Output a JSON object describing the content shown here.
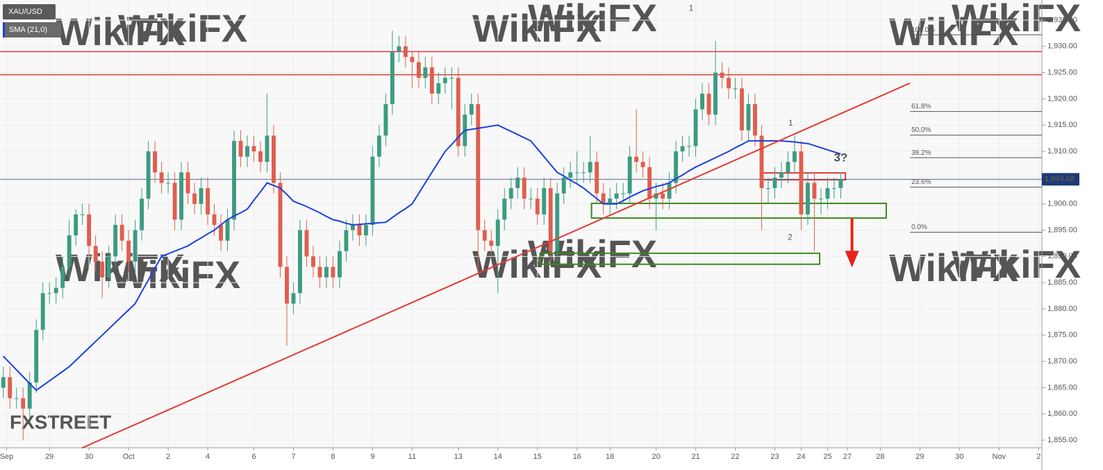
{
  "chart_data": {
    "type": "candlestick",
    "symbol": "XAU/USD",
    "up_color": "#3c9b82",
    "down_color": "#df5f4e",
    "open": [
      1865,
      1867,
      1863,
      1863,
      1861,
      1866,
      1876,
      1883,
      1883,
      1884,
      1888,
      1894,
      1898,
      1898,
      1892,
      1889,
      1886,
      1890,
      1896,
      1893,
      1889,
      1895,
      1901,
      1910,
      1906,
      1904,
      1904,
      1897,
      1906,
      1902,
      1900,
      1903,
      1898,
      1896,
      1893,
      1897,
      1912,
      1909,
      1911,
      1910,
      1908,
      1913,
      1904,
      1888,
      1881,
      1883,
      1895,
      1890,
      1888,
      1886,
      1888,
      1886,
      1891,
      1895,
      1896,
      1894,
      1896,
      1909,
      1913,
      1919,
      1929,
      1930,
      1928,
      1927,
      1924,
      1926,
      1921,
      1923,
      1924,
      1924,
      1911,
      1917,
      1919,
      1895,
      1893,
      1892,
      1897,
      1901,
      1903,
      1905,
      1901,
      1901,
      1898,
      1903,
      1891,
      1902,
      1905,
      1906,
      1906,
      1906,
      1908,
      1902,
      1900,
      1901,
      1902,
      1902,
      1909,
      1908,
      1907,
      1901,
      1902,
      1901,
      1904,
      1910,
      1911,
      1911,
      1918,
      1921,
      1917,
      1925,
      1924,
      1922,
      1922,
      1914,
      1919,
      1913,
      1903,
      1903,
      1905,
      1906,
      1908,
      1910,
      1898,
      1904,
      1901,
      1901,
      1903,
      1903
    ],
    "high": [
      1869,
      1869,
      1865,
      1865,
      1868,
      1878,
      1885,
      1885,
      1886,
      1890,
      1897,
      1899,
      1900,
      1900,
      1894,
      1891,
      1892,
      1898,
      1898,
      1895,
      1897,
      1903,
      1912,
      1912,
      1908,
      1906,
      1906,
      1908,
      1908,
      1904,
      1905,
      1905,
      1900,
      1898,
      1899,
      1914,
      1914,
      1913,
      1913,
      1912,
      1921,
      1915,
      1906,
      1890,
      1885,
      1897,
      1897,
      1892,
      1890,
      1890,
      1890,
      1893,
      1897,
      1898,
      1898,
      1898,
      1911,
      1915,
      1921,
      1933,
      1932,
      1932,
      1929,
      1929,
      1928,
      1928,
      1925,
      1926,
      1926,
      1926,
      1919,
      1921,
      1921,
      1897,
      1895,
      1899,
      1903,
      1905,
      1907,
      1907,
      1903,
      1903,
      1905,
      1905,
      1904,
      1907,
      1908,
      1910,
      1908,
      1913,
      1910,
      1904,
      1903,
      1904,
      1904,
      1911,
      1918,
      1910,
      1909,
      1904,
      1904,
      1906,
      1912,
      1913,
      1913,
      1920,
      1923,
      1923,
      1931,
      1927,
      1926,
      1924,
      1924,
      1921,
      1921,
      1915,
      1905,
      1907,
      1908,
      1910,
      1913,
      1912,
      1906,
      1906,
      1903,
      1905,
      1905,
      1906
    ],
    "low": [
      1863,
      1861,
      1861,
      1855,
      1859,
      1864,
      1874,
      1881,
      1881,
      1882,
      1886,
      1892,
      1896,
      1890,
      1887,
      1882,
      1884,
      1888,
      1891,
      1887,
      1887,
      1893,
      1899,
      1904,
      1902,
      1902,
      1895,
      1895,
      1900,
      1898,
      1898,
      1896,
      1894,
      1891,
      1891,
      1895,
      1907,
      1907,
      1908,
      1906,
      1906,
      1902,
      1886,
      1873,
      1879,
      1881,
      1888,
      1886,
      1884,
      1884,
      1884,
      1884,
      1889,
      1893,
      1892,
      1892,
      1894,
      1907,
      1911,
      1917,
      1927,
      1926,
      1922,
      1922,
      1922,
      1919,
      1919,
      1921,
      1918,
      1909,
      1909,
      1915,
      1887,
      1891,
      1890,
      1883,
      1895,
      1899,
      1901,
      1899,
      1899,
      1896,
      1896,
      1889,
      1889,
      1900,
      1903,
      1904,
      1904,
      1904,
      1900,
      1898,
      1898,
      1899,
      1900,
      1900,
      1906,
      1905,
      1899,
      1895,
      1899,
      1899,
      1902,
      1908,
      1909,
      1909,
      1916,
      1915,
      1915,
      1922,
      1920,
      1920,
      1912,
      1912,
      1911,
      1895,
      1900,
      1901,
      1903,
      1904,
      1906,
      1895,
      1896,
      1891,
      1898,
      1899,
      1901,
      1901
    ],
    "close": [
      1867,
      1863,
      1863,
      1861,
      1866,
      1876,
      1883,
      1883,
      1884,
      1888,
      1894,
      1898,
      1898,
      1892,
      1889,
      1886,
      1890,
      1896,
      1893,
      1889,
      1895,
      1901,
      1910,
      1906,
      1904,
      1904,
      1897,
      1906,
      1902,
      1900,
      1903,
      1898,
      1896,
      1893,
      1897,
      1912,
      1909,
      1911,
      1910,
      1908,
      1913,
      1904,
      1888,
      1881,
      1883,
      1895,
      1890,
      1888,
      1886,
      1888,
      1886,
      1891,
      1895,
      1896,
      1894,
      1896,
      1909,
      1913,
      1919,
      1929,
      1930,
      1928,
      1927,
      1924,
      1926,
      1921,
      1923,
      1924,
      1924,
      1911,
      1917,
      1919,
      1895,
      1893,
      1892,
      1897,
      1901,
      1903,
      1905,
      1901,
      1901,
      1898,
      1903,
      1891,
      1902,
      1905,
      1906,
      1906,
      1906,
      1908,
      1902,
      1900,
      1901,
      1902,
      1902,
      1909,
      1908,
      1907,
      1901,
      1902,
      1901,
      1904,
      1910,
      1911,
      1911,
      1918,
      1921,
      1917,
      1925,
      1924,
      1922,
      1922,
      1914,
      1919,
      1913,
      1903,
      1903,
      1905,
      1906,
      1908,
      1910,
      1898,
      1904,
      1901,
      1901,
      1903,
      1903,
      1904.68
    ],
    "sma": {
      "name": "SMA (21,0)",
      "color": "#1a3fe0",
      "values": [
        1871,
        1869.7,
        1868.4,
        1867.1,
        1865.8,
        1864.5,
        1865.4,
        1866.3,
        1867.2,
        1868.1,
        1869,
        1870.2,
        1871.4,
        1872.6,
        1873.8,
        1875,
        1876.2,
        1877.4,
        1878.6,
        1879.8,
        1881,
        1883.3,
        1885.5,
        1887.8,
        1890,
        1890.5,
        1891,
        1891.5,
        1892,
        1892.8,
        1893.5,
        1894.3,
        1895,
        1896,
        1897,
        1897.7,
        1898.3,
        1899,
        1900.7,
        1902.3,
        1904,
        1903.5,
        1903,
        1901.8,
        1900.5,
        1900,
        1899.5,
        1898.9,
        1898.3,
        1897.6,
        1897,
        1896.7,
        1896.3,
        1896,
        1896.1,
        1896.2,
        1896.3,
        1896.4,
        1896.5,
        1897.4,
        1898.3,
        1899.1,
        1900,
        1902,
        1904,
        1906,
        1908,
        1910,
        1911.3,
        1912.7,
        1914,
        1914.2,
        1914.4,
        1914.6,
        1914.8,
        1915,
        1914.4,
        1913.8,
        1913.2,
        1912.6,
        1912,
        1910.5,
        1909,
        1907.5,
        1906,
        1905.3,
        1904.5,
        1903.8,
        1903,
        1902,
        1901,
        1900,
        1900,
        1900,
        1900.6,
        1901.3,
        1901.9,
        1902.5,
        1902.9,
        1903.3,
        1903.6,
        1904,
        1904.8,
        1905.5,
        1906.3,
        1907,
        1907.6,
        1908.2,
        1908.8,
        1909.4,
        1910,
        1910.7,
        1911.3,
        1912,
        1912,
        1912,
        1912,
        1912,
        1912,
        1911.9,
        1911.8,
        1911.6,
        1911.5,
        1911.1,
        1910.7,
        1910.3,
        1909.9,
        1909.5
      ]
    },
    "xlim": [
      -0.5,
      157.5
    ],
    "ylim": [
      1853.55,
      1938.83
    ],
    "xticks": [
      {
        "value": 0.5,
        "label": "Sep"
      },
      {
        "value": 7,
        "label": "29"
      },
      {
        "value": 13,
        "label": "30"
      },
      {
        "value": 19,
        "label": "Oct"
      },
      {
        "value": 25,
        "label": "2"
      },
      {
        "value": 31,
        "label": "4"
      },
      {
        "value": 38,
        "label": "6"
      },
      {
        "value": 44,
        "label": "7"
      },
      {
        "value": 50,
        "label": "8"
      },
      {
        "value": 56,
        "label": "9"
      },
      {
        "value": 62,
        "label": "11"
      },
      {
        "value": 69,
        "label": "13"
      },
      {
        "value": 75,
        "label": "14"
      },
      {
        "value": 81,
        "label": "15"
      },
      {
        "value": 87,
        "label": "16"
      },
      {
        "value": 92,
        "label": "18"
      },
      {
        "value": 99,
        "label": "20"
      },
      {
        "value": 105,
        "label": "21"
      },
      {
        "value": 111,
        "label": "22"
      },
      {
        "value": 117,
        "label": "23"
      },
      {
        "value": 121,
        "label": "24"
      },
      {
        "value": 125,
        "label": "25"
      },
      {
        "value": 128,
        "label": "27"
      },
      {
        "value": 133,
        "label": "28"
      },
      {
        "value": 139,
        "label": "29"
      },
      {
        "value": 145,
        "label": "30"
      },
      {
        "value": 151,
        "label": "Nov"
      },
      {
        "value": 157,
        "label": "2"
      }
    ],
    "yticks": [
      {
        "value": 1855,
        "label": "1,855.00"
      },
      {
        "value": 1860,
        "label": "1,860.00"
      },
      {
        "value": 1865,
        "label": "1,865.00"
      },
      {
        "value": 1870,
        "label": "1,870.00"
      },
      {
        "value": 1875,
        "label": "1,875.00"
      },
      {
        "value": 1880,
        "label": "1,880.00"
      },
      {
        "value": 1885,
        "label": "1,885.00"
      },
      {
        "value": 1890,
        "label": "1,890.00"
      },
      {
        "value": 1895,
        "label": "1,895.00"
      },
      {
        "value": 1900,
        "label": "1,900.00"
      },
      {
        "value": 1905,
        "label": "1,905.00"
      },
      {
        "value": 1910,
        "label": "1,910.00"
      },
      {
        "value": 1915,
        "label": "1,915.00"
      },
      {
        "value": 1920,
        "label": "1,920.00"
      },
      {
        "value": 1925,
        "label": "1,925.00"
      },
      {
        "value": 1930,
        "label": "1,930.00"
      },
      {
        "value": 1935,
        "label": "1,935.00"
      }
    ],
    "grid": true,
    "price_line": {
      "value": 1904.68,
      "label": "1,904.68",
      "color": "#1e3a78"
    },
    "hlines": [
      {
        "value": 1929,
        "color": "#e53935"
      },
      {
        "value": 1924.6,
        "color": "#e53935"
      }
    ],
    "trendline": {
      "x": [
        11.9,
        137.5
      ],
      "y": [
        1853.5,
        1923
      ],
      "color": "#e53935"
    },
    "fib_x": [
      137.5,
      157.5
    ],
    "fib_levels": [
      {
        "value": 1932.2,
        "label": "100.0%"
      },
      {
        "value": 1917.6,
        "label": "61.8%"
      },
      {
        "value": 1913.1,
        "label": "50.0%"
      },
      {
        "value": 1908.8,
        "label": "38.2%"
      },
      {
        "value": 1903.2,
        "label": "23.6%"
      },
      {
        "value": 1894.6,
        "label": "0.0%"
      }
    ],
    "zones": [
      {
        "x": [
          89.2,
          133.9
        ],
        "y": [
          1897.3,
          1900.1
        ],
        "color": "#3a8a1a"
      },
      {
        "x": [
          81.4,
          123.8
        ],
        "y": [
          1888.5,
          1890.6
        ],
        "color": "#3a8a1a"
      },
      {
        "x": [
          115,
          127.7
        ],
        "y": [
          1904.6,
          1905.9
        ],
        "color": "#e53935"
      }
    ],
    "arrow": {
      "x": 128.7,
      "y": [
        1897.2,
        1887.9
      ],
      "color": "#e8221b"
    },
    "labels": [
      {
        "text": "1",
        "x": 104.3,
        "y": 1937.2
      },
      {
        "text": "1",
        "x": 119.4,
        "y": 1915.3
      },
      {
        "text": "2",
        "x": 119.3,
        "y": 1893.6
      },
      {
        "text": "3?",
        "x": 127,
        "y": 1908.7
      }
    ],
    "watermark": "WikiFX",
    "logo": "FXSTREET"
  }
}
